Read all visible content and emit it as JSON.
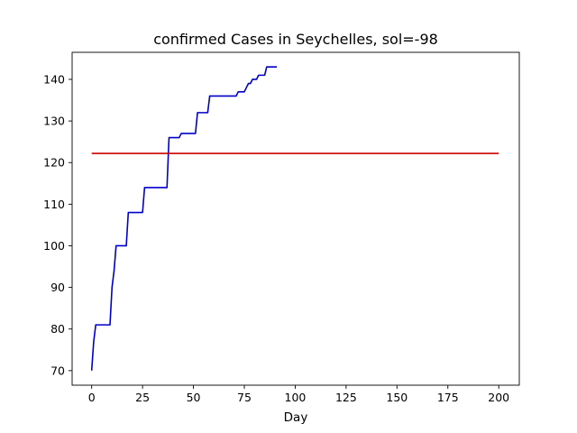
{
  "chart_data": {
    "type": "line",
    "title": "confirmed Cases in Seychelles, sol=-98",
    "xlabel": "Day",
    "ylabel": "",
    "xlim": [
      -9.6,
      210.1
    ],
    "ylim": [
      66.5,
      146.5
    ],
    "xticks": [
      0,
      25,
      50,
      75,
      100,
      125,
      150,
      175,
      200
    ],
    "yticks": [
      70,
      80,
      90,
      100,
      110,
      120,
      130,
      140
    ],
    "grid": false,
    "series": [
      {
        "color": "#0000cc",
        "x": [
          0,
          1,
          2,
          3,
          4,
          5,
          6,
          7,
          8,
          9,
          10,
          11,
          12,
          13,
          14,
          15,
          16,
          17,
          18,
          19,
          20,
          21,
          22,
          23,
          24,
          25,
          26,
          27,
          28,
          29,
          30,
          31,
          32,
          33,
          34,
          35,
          36,
          37,
          38,
          39,
          40,
          41,
          42,
          43,
          44,
          45,
          46,
          47,
          48,
          49,
          50,
          51,
          52,
          53,
          54,
          55,
          56,
          57,
          58,
          59,
          60,
          61,
          62,
          63,
          64,
          65,
          66,
          67,
          68,
          69,
          70,
          71,
          72,
          73,
          74,
          75,
          76,
          77,
          78,
          79,
          80,
          81,
          82,
          83,
          84,
          85,
          86,
          87,
          88,
          89,
          90,
          91
        ],
        "y": [
          70,
          77,
          81,
          81,
          81,
          81,
          81,
          81,
          81,
          81,
          90,
          94,
          100,
          100,
          100,
          100,
          100,
          100,
          108,
          108,
          108,
          108,
          108,
          108,
          108,
          108,
          114,
          114,
          114,
          114,
          114,
          114,
          114,
          114,
          114,
          114,
          114,
          114,
          126,
          126,
          126,
          126,
          126,
          126,
          127,
          127,
          127,
          127,
          127,
          127,
          127,
          127,
          132,
          132,
          132,
          132,
          132,
          132,
          136,
          136,
          136,
          136,
          136,
          136,
          136,
          136,
          136,
          136,
          136,
          136,
          136,
          136,
          137,
          137,
          137,
          137,
          138,
          139,
          139,
          140,
          140,
          140,
          141,
          141,
          141,
          141,
          143,
          143,
          143,
          143,
          143,
          143
        ]
      },
      {
        "color": "#cc0000",
        "x": [
          0,
          200
        ],
        "y": [
          122.2,
          122.2
        ]
      }
    ]
  }
}
